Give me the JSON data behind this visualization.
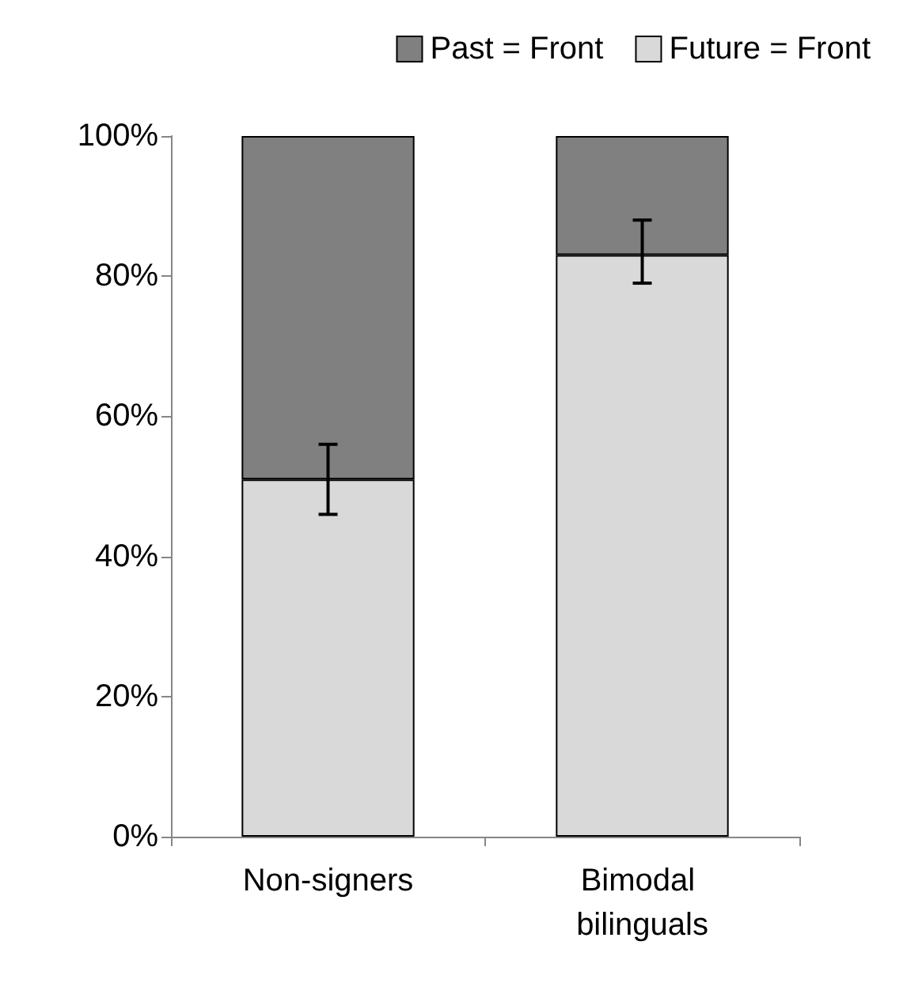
{
  "chart_data": {
    "type": "bar",
    "stacked": true,
    "categories": [
      "Non-signers",
      "Bimodal bilinguals"
    ],
    "series": [
      {
        "name": "Future = Front",
        "color": "#d9d9d9",
        "values": [
          51,
          83
        ],
        "errors": [
          [
            46,
            56
          ],
          [
            79,
            88
          ]
        ]
      },
      {
        "name": "Past = Front",
        "color": "#808080",
        "values": [
          49,
          17
        ]
      }
    ],
    "ylim": [
      0,
      100
    ],
    "yticks": [
      {
        "value": 0,
        "label": "0%"
      },
      {
        "value": 20,
        "label": "20%"
      },
      {
        "value": 40,
        "label": "40%"
      },
      {
        "value": 60,
        "label": "60%"
      },
      {
        "value": 80,
        "label": "80%"
      },
      {
        "value": 100,
        "label": "100%"
      }
    ],
    "grid": false,
    "legend": "top right"
  }
}
